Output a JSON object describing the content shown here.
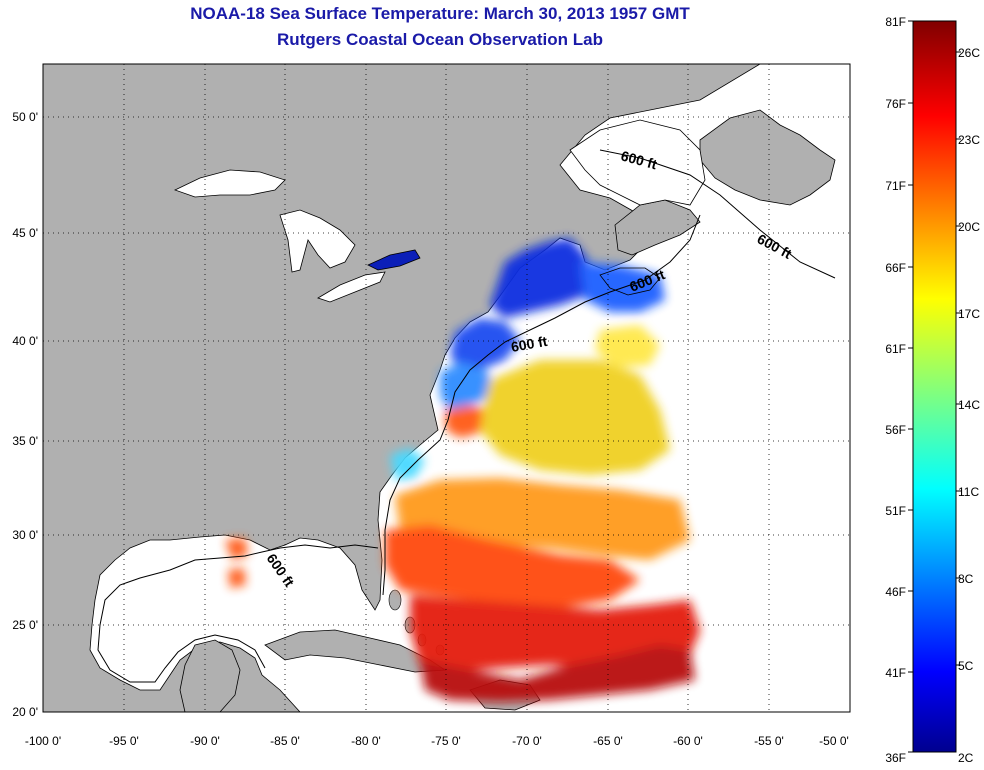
{
  "header": {
    "title": "NOAA-18 Sea Surface Temperature:  March 30, 2013 1957 GMT",
    "subtitle": "Rutgers Coastal Ocean Observation Lab"
  },
  "map": {
    "lon_ticks": [
      "-100 0'",
      "-95 0'",
      "-90 0'",
      "-85 0'",
      "-80 0'",
      "-75 0'",
      "-70 0'",
      "-65 0'",
      "-60 0'",
      "-55 0'",
      "-50 0'"
    ],
    "lat_ticks": [
      "50 0'",
      "45 0'",
      "40 0'",
      "35 0'",
      "30 0'",
      "25 0'",
      "20 0'"
    ],
    "contour_labels": [
      "600 ft",
      "600 ft",
      "600 ft",
      "600 ft",
      "600 ft"
    ],
    "colors": {
      "land": "#b0b0b0",
      "water": "#ffffff"
    }
  },
  "colorbar": {
    "fahrenheit_labels": [
      "81F",
      "76F",
      "71F",
      "66F",
      "61F",
      "56F",
      "51F",
      "46F",
      "41F",
      "36F"
    ],
    "celsius_labels": [
      "26C",
      "23C",
      "20C",
      "17C",
      "14C",
      "11C",
      "8C",
      "5C",
      "2C"
    ],
    "range_c": [
      2,
      27.2
    ],
    "range_f": [
      36,
      81
    ]
  }
}
